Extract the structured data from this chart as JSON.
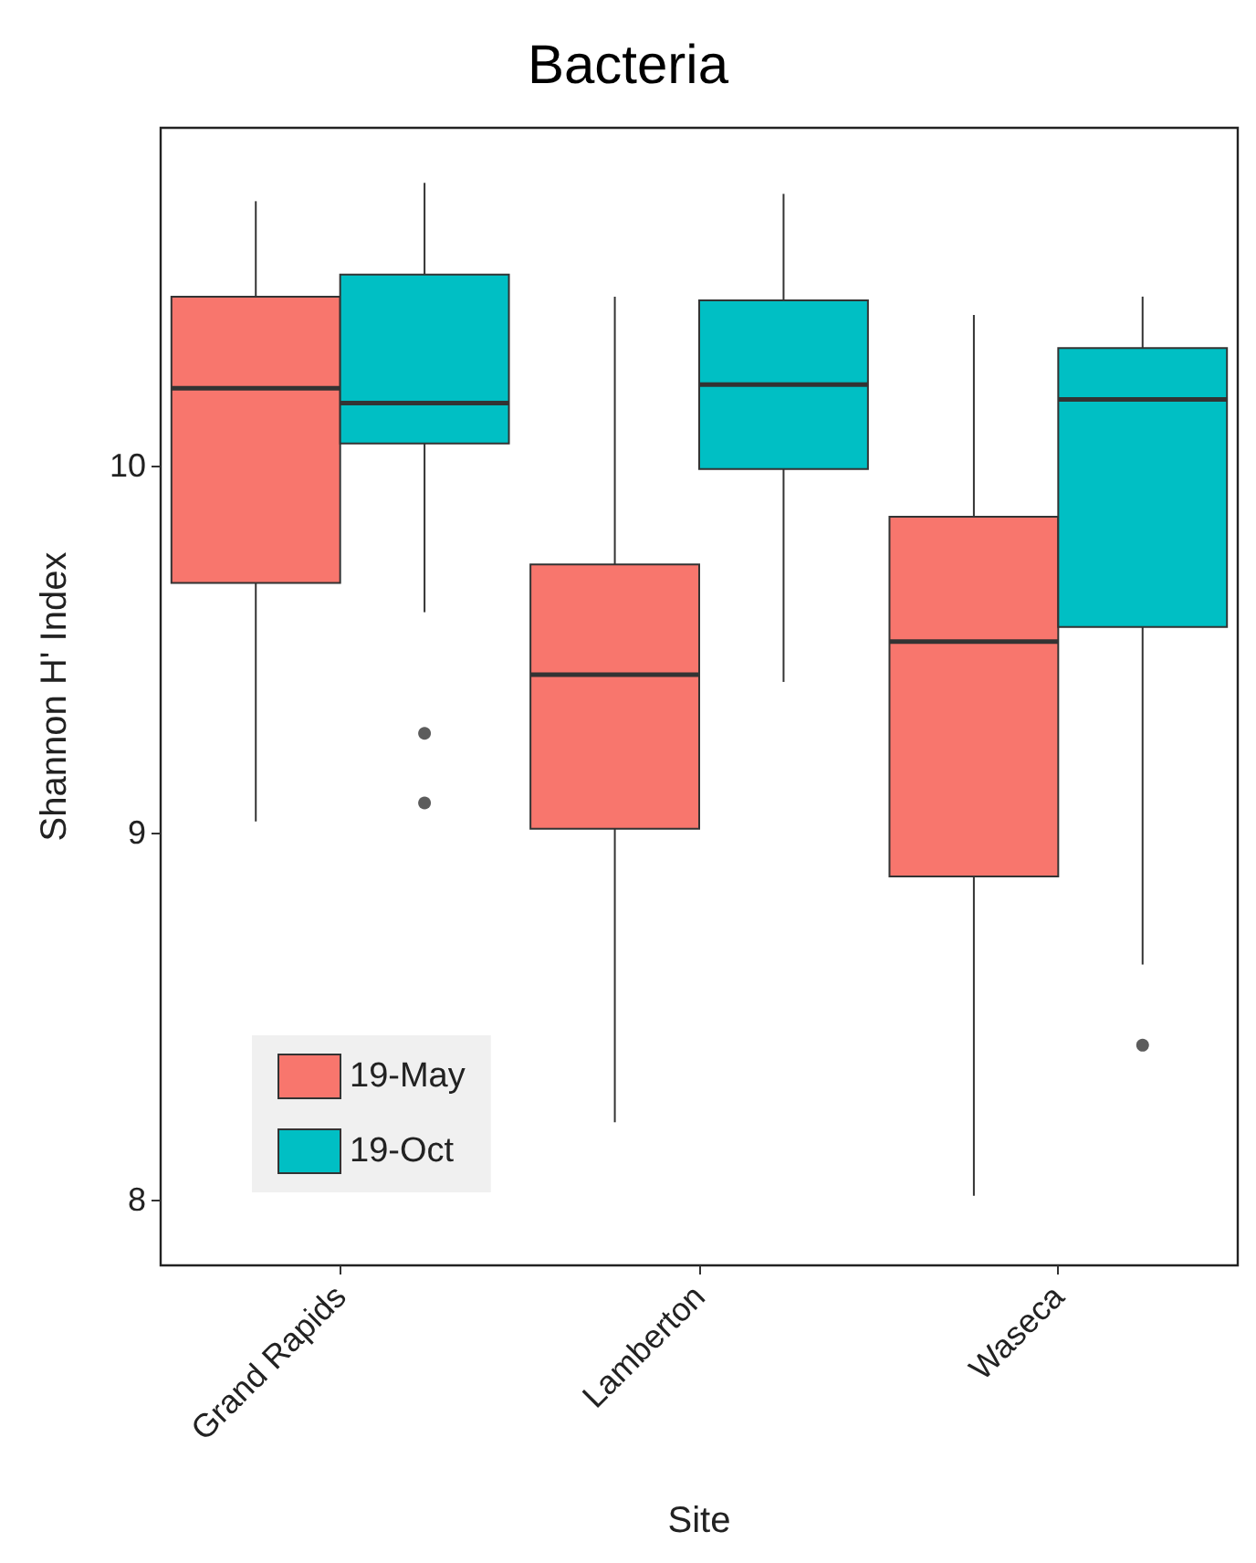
{
  "chart_data": {
    "type": "box",
    "title": "Bacteria",
    "xlabel": "Site",
    "ylabel": "Shannon H' Index",
    "categories": [
      "Grand Rapids",
      "Lamberton",
      "Waseca"
    ],
    "ylim": [
      7.82,
      10.92
    ],
    "yticks": [
      8,
      9,
      10
    ],
    "grid": false,
    "legend": "bottom left",
    "series": [
      {
        "name": "19-May",
        "color": "#f8766d",
        "boxes": [
          {
            "low": 9.03,
            "q1": 9.68,
            "median": 10.21,
            "q3": 10.46,
            "high": 10.72
          },
          {
            "low": 8.21,
            "q1": 9.01,
            "median": 9.43,
            "q3": 9.73,
            "high": 10.46
          },
          {
            "low": 8.01,
            "q1": 8.88,
            "median": 9.52,
            "q3": 9.86,
            "high": 10.41
          }
        ]
      },
      {
        "name": "19-Oct",
        "color": "#00bfc4",
        "boxes": [
          {
            "low": 9.6,
            "q1": 10.06,
            "median": 10.17,
            "q3": 10.52,
            "high": 10.77,
            "outliers": [
              9.27,
              9.08
            ]
          },
          {
            "low": 9.41,
            "q1": 9.99,
            "median": 10.22,
            "q3": 10.45,
            "high": 10.74
          },
          {
            "low": 8.64,
            "q1": 9.56,
            "median": 10.18,
            "q3": 10.32,
            "high": 10.46,
            "outliers": [
              8.42
            ]
          }
        ]
      }
    ]
  }
}
